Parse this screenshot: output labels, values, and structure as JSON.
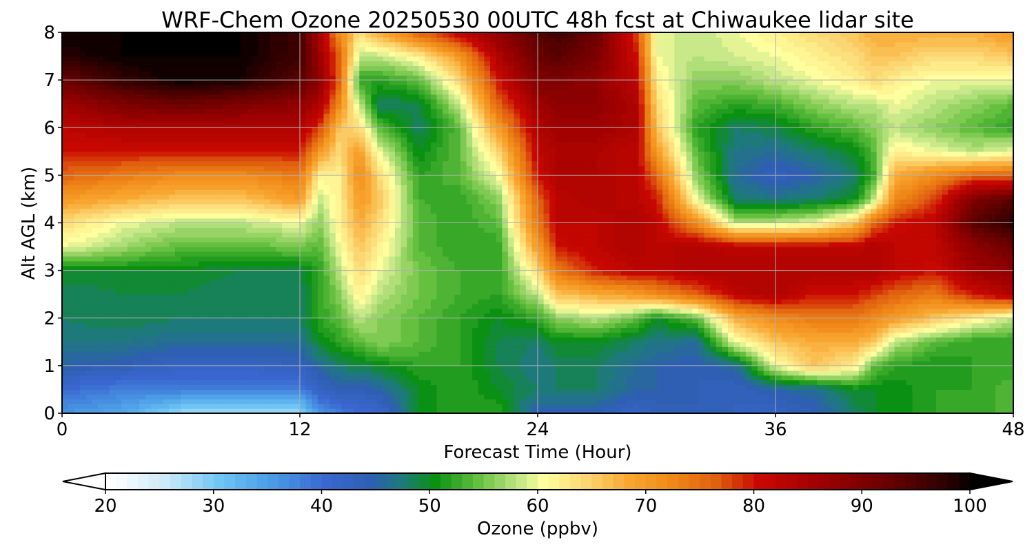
{
  "chart_data": {
    "type": "heatmap",
    "title": "WRF-Chem Ozone  20250530 00UTC 48h fcst at Chiwaukee lidar site",
    "xlabel": "Forecast Time (Hour)",
    "ylabel": "Alt AGL (km)",
    "xlim": [
      0,
      48
    ],
    "ylim": [
      0,
      8
    ],
    "xticks": [
      0,
      12,
      24,
      36,
      48
    ],
    "yticks": [
      0,
      1,
      2,
      3,
      4,
      5,
      6,
      7,
      8
    ],
    "grid": true,
    "x": [
      0,
      3,
      6,
      9,
      12,
      13,
      14,
      15,
      16,
      18,
      20,
      22,
      24,
      25,
      27,
      29,
      30,
      32,
      34,
      36,
      38,
      40,
      41,
      42,
      44,
      46,
      48
    ],
    "y": [
      0,
      0.5,
      1,
      1.5,
      2,
      2.5,
      3,
      3.5,
      4,
      4.5,
      5,
      5.5,
      6,
      6.5,
      7,
      7.5,
      8
    ],
    "z": [
      [
        36,
        34,
        28,
        27,
        28,
        36,
        38,
        40,
        41,
        50,
        52,
        52,
        44,
        44,
        44,
        42,
        43,
        44,
        43,
        42,
        44,
        48,
        50,
        50,
        52,
        52,
        54
      ],
      [
        40,
        38,
        38,
        38,
        38,
        42,
        44,
        44,
        45,
        50,
        52,
        50,
        48,
        48,
        48,
        45,
        45,
        44,
        43,
        45,
        46,
        50,
        50,
        50,
        52,
        52,
        54
      ],
      [
        45,
        44,
        42,
        42,
        43,
        46,
        48,
        49,
        50,
        52,
        52,
        49,
        47,
        48,
        48,
        46,
        45,
        44,
        46,
        60,
        66,
        62,
        54,
        52,
        51,
        52,
        52
      ],
      [
        47,
        47,
        46,
        46,
        46,
        50,
        52,
        54,
        56,
        54,
        52,
        49,
        48,
        50,
        50,
        48,
        47,
        46,
        60,
        66,
        68,
        68,
        66,
        58,
        54,
        52,
        52
      ],
      [
        48,
        49,
        48,
        48,
        48,
        52,
        54,
        58,
        56,
        54,
        52,
        50,
        52,
        56,
        58,
        54,
        50,
        54,
        68,
        72,
        74,
        74,
        72,
        70,
        66,
        62,
        58
      ],
      [
        48,
        49,
        49,
        48,
        48,
        52,
        56,
        62,
        58,
        55,
        53,
        52,
        58,
        66,
        68,
        70,
        72,
        76,
        82,
        84,
        80,
        80,
        78,
        76,
        74,
        80,
        84
      ],
      [
        50,
        50,
        50,
        49,
        49,
        52,
        58,
        64,
        60,
        55,
        53,
        52,
        64,
        74,
        80,
        82,
        82,
        84,
        84,
        84,
        84,
        84,
        84,
        82,
        80,
        86,
        88
      ],
      [
        60,
        57,
        54,
        54,
        55,
        54,
        60,
        66,
        62,
        54,
        52,
        52,
        70,
        80,
        82,
        84,
        82,
        84,
        82,
        82,
        82,
        82,
        84,
        82,
        82,
        88,
        92
      ],
      [
        64,
        60,
        58,
        58,
        60,
        56,
        62,
        68,
        64,
        54,
        52,
        54,
        74,
        82,
        82,
        84,
        82,
        72,
        58,
        58,
        60,
        66,
        76,
        80,
        82,
        94,
        98
      ],
      [
        70,
        68,
        66,
        66,
        70,
        58,
        62,
        70,
        66,
        53,
        52,
        56,
        76,
        82,
        84,
        82,
        80,
        60,
        48,
        47,
        48,
        50,
        58,
        72,
        78,
        90,
        94
      ],
      [
        76,
        74,
        72,
        72,
        74,
        62,
        62,
        72,
        64,
        52,
        54,
        60,
        80,
        84,
        84,
        82,
        76,
        56,
        46,
        43,
        45,
        48,
        53,
        68,
        72,
        76,
        76
      ],
      [
        80,
        80,
        80,
        80,
        80,
        70,
        64,
        70,
        60,
        50,
        54,
        64,
        82,
        84,
        84,
        82,
        70,
        54,
        47,
        46,
        48,
        50,
        54,
        62,
        60,
        58,
        60
      ],
      [
        82,
        84,
        84,
        84,
        84,
        78,
        66,
        64,
        54,
        48,
        54,
        70,
        84,
        86,
        86,
        84,
        66,
        52,
        48,
        49,
        52,
        54,
        56,
        58,
        56,
        54,
        52
      ],
      [
        86,
        90,
        92,
        90,
        88,
        84,
        72,
        58,
        48,
        49,
        58,
        76,
        86,
        88,
        88,
        84,
        64,
        54,
        52,
        53,
        56,
        58,
        58,
        60,
        58,
        56,
        54
      ],
      [
        92,
        97,
        100,
        99,
        94,
        88,
        76,
        52,
        52,
        54,
        64,
        80,
        90,
        90,
        88,
        82,
        62,
        56,
        56,
        58,
        60,
        62,
        64,
        62,
        60,
        60,
        60
      ],
      [
        98,
        100,
        100,
        100,
        96,
        86,
        76,
        58,
        58,
        62,
        70,
        84,
        92,
        94,
        90,
        80,
        60,
        58,
        59,
        60,
        62,
        64,
        66,
        66,
        64,
        64,
        66
      ],
      [
        100,
        100,
        100,
        100,
        96,
        84,
        72,
        64,
        68,
        76,
        82,
        88,
        94,
        96,
        92,
        78,
        60,
        58,
        60,
        62,
        64,
        66,
        68,
        68,
        68,
        68,
        70
      ]
    ],
    "colorbar": {
      "label": "Ozone  (ppbv)",
      "min": 20,
      "max": 100,
      "step": 1,
      "ticks": [
        20,
        30,
        40,
        50,
        60,
        70,
        80,
        90,
        100
      ],
      "extend": "both",
      "colormap": [
        [
          20,
          "#ffffff"
        ],
        [
          25,
          "#cdeaf8"
        ],
        [
          30,
          "#6fc6f4"
        ],
        [
          35,
          "#4a9ae6"
        ],
        [
          40,
          "#3a66cf"
        ],
        [
          44,
          "#2e5fb2"
        ],
        [
          47,
          "#1e7a7a"
        ],
        [
          50,
          "#0a9012"
        ],
        [
          54,
          "#66c040"
        ],
        [
          58,
          "#c8e88a"
        ],
        [
          60,
          "#ffffa0"
        ],
        [
          64,
          "#fcd672"
        ],
        [
          68,
          "#f8a630"
        ],
        [
          72,
          "#f08818"
        ],
        [
          76,
          "#e06010"
        ],
        [
          80,
          "#c80800"
        ],
        [
          86,
          "#9c0000"
        ],
        [
          92,
          "#680000"
        ],
        [
          97,
          "#300000"
        ],
        [
          100,
          "#000000"
        ]
      ]
    }
  }
}
